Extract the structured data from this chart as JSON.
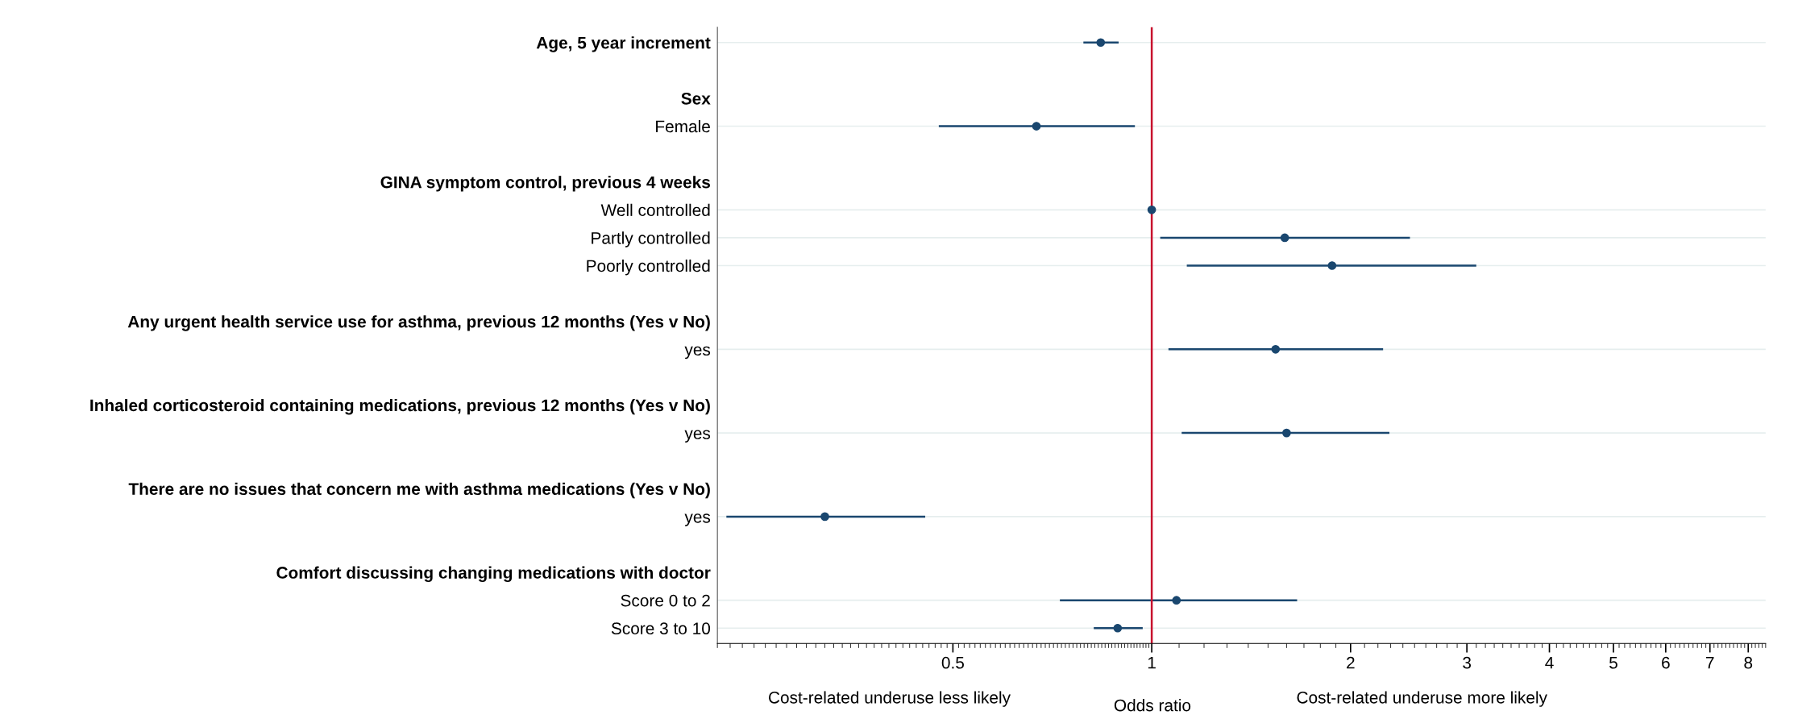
{
  "chart_data": {
    "type": "scatter",
    "categories": [
      "Age, 5 year increment",
      null,
      "Sex",
      "Female",
      null,
      "GINA symptom control, previous 4 weeks",
      "Well controlled",
      "Partly controlled",
      "Poorly controlled",
      null,
      "Any urgent health service use for asthma, previous 12 months (Yes v No)",
      "yes",
      null,
      "Inhaled corticosteroid containing medications, previous 12 months (Yes v No)",
      "yes",
      null,
      "There are no issues that concern me with asthma medications (Yes v No)",
      "yes",
      null,
      "Comfort discussing changing medications with doctor",
      "Score 0 to 2",
      "Score 3 to 10"
    ],
    "orientation": "horizontal",
    "series": [
      {
        "color": "#1a476f",
        "values": [
          0.837,
          null,
          null,
          0.669,
          null,
          null,
          1.0,
          1.59,
          1.875,
          null,
          null,
          1.54,
          null,
          null,
          1.6,
          null,
          null,
          0.32,
          null,
          null,
          1.09,
          0.888
        ],
        "errors": [
          [
            0.788,
            0.891
          ],
          null,
          null,
          [
            0.476,
            0.943
          ],
          null,
          null,
          null,
          [
            1.03,
            2.46
          ],
          [
            1.13,
            3.1
          ],
          null,
          null,
          [
            1.06,
            2.24
          ],
          null,
          null,
          [
            1.11,
            2.29
          ],
          null,
          null,
          [
            0.227,
            0.454
          ],
          null,
          null,
          [
            0.726,
            1.66
          ],
          [
            0.817,
            0.969
          ]
        ]
      }
    ],
    "marker": "circle",
    "log": "x",
    "xlim": [
      0.22,
      8.5
    ],
    "xticks": [
      0.5,
      1,
      2,
      3,
      4,
      5,
      6,
      7,
      8
    ],
    "xlabel": "Odds ratio",
    "grid": "y",
    "ref_lines": [
      {
        "axis": "x",
        "value": 1,
        "color": "#c8102e"
      }
    ],
    "annotations": [
      "Cost-related underuse less likely",
      "Cost-related underuse more likely"
    ]
  }
}
